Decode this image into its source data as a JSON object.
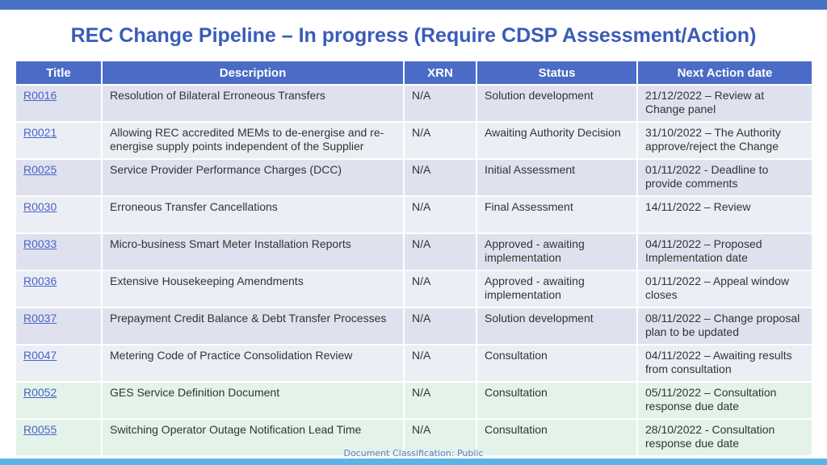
{
  "title": "REC Change Pipeline – In progress (Require CDSP Assessment/Action)",
  "columns": [
    "Title",
    "Description",
    "XRN",
    "Status",
    "Next Action date"
  ],
  "rows": [
    {
      "id": "R0016",
      "description": "Resolution of Bilateral Erroneous Transfers",
      "xrn": "N/A",
      "status": "Solution development",
      "next": "21/12/2022 – Review at Change panel"
    },
    {
      "id": "R0021",
      "description": "Allowing REC accredited MEMs to de-energise and re-energise supply points independent of the Supplier",
      "xrn": "N/A",
      "status": "Awaiting Authority Decision",
      "next": "31/10/2022 – The Authority approve/reject the Change"
    },
    {
      "id": "R0025",
      "description": "Service Provider Performance Charges (DCC)",
      "xrn": "N/A",
      "status": "Initial Assessment",
      "next": "01/11/2022 - Deadline to provide comments"
    },
    {
      "id": "R0030",
      "description": "Erroneous Transfer Cancellations",
      "xrn": "N/A",
      "status": "Final Assessment",
      "next": "14/11/2022 – Review"
    },
    {
      "id": "R0033",
      "description": "Micro-business Smart Meter Installation Reports",
      "xrn": "N/A",
      "status": "Approved - awaiting implementation",
      "next": "04/11/2022 – Proposed Implementation date"
    },
    {
      "id": "R0036",
      "description": "Extensive Housekeeping Amendments",
      "xrn": "N/A",
      "status": "Approved - awaiting implementation",
      "next": "01/11/2022 – Appeal window closes"
    },
    {
      "id": "R0037",
      "description": "Prepayment Credit Balance & Debt Transfer Processes",
      "xrn": "N/A",
      "status": "Solution development",
      "next": "08/11/2022 – Change proposal plan to be updated"
    },
    {
      "id": "R0047",
      "description": "Metering Code of Practice Consolidation Review",
      "xrn": "N/A",
      "status": "Consultation",
      "next": "04/11/2022 – Awaiting results from consultation"
    },
    {
      "id": "R0052",
      "description": "GES Service Definition Document",
      "xrn": "N/A",
      "status": "Consultation",
      "next": "05/11/2022 – Consultation response due date"
    },
    {
      "id": "R0055",
      "description": "Switching Operator Outage Notification Lead Time",
      "xrn": "N/A",
      "status": "Consultation",
      "next": "28/10/2022 - Consultation response due date"
    }
  ],
  "footer": "Document Classification: Public",
  "colors": {
    "header_bg": "#4a6cc6",
    "title": "#3a5bb8",
    "top_bar": "#4a72c4",
    "bottom_bar": "#5ab4e8"
  }
}
